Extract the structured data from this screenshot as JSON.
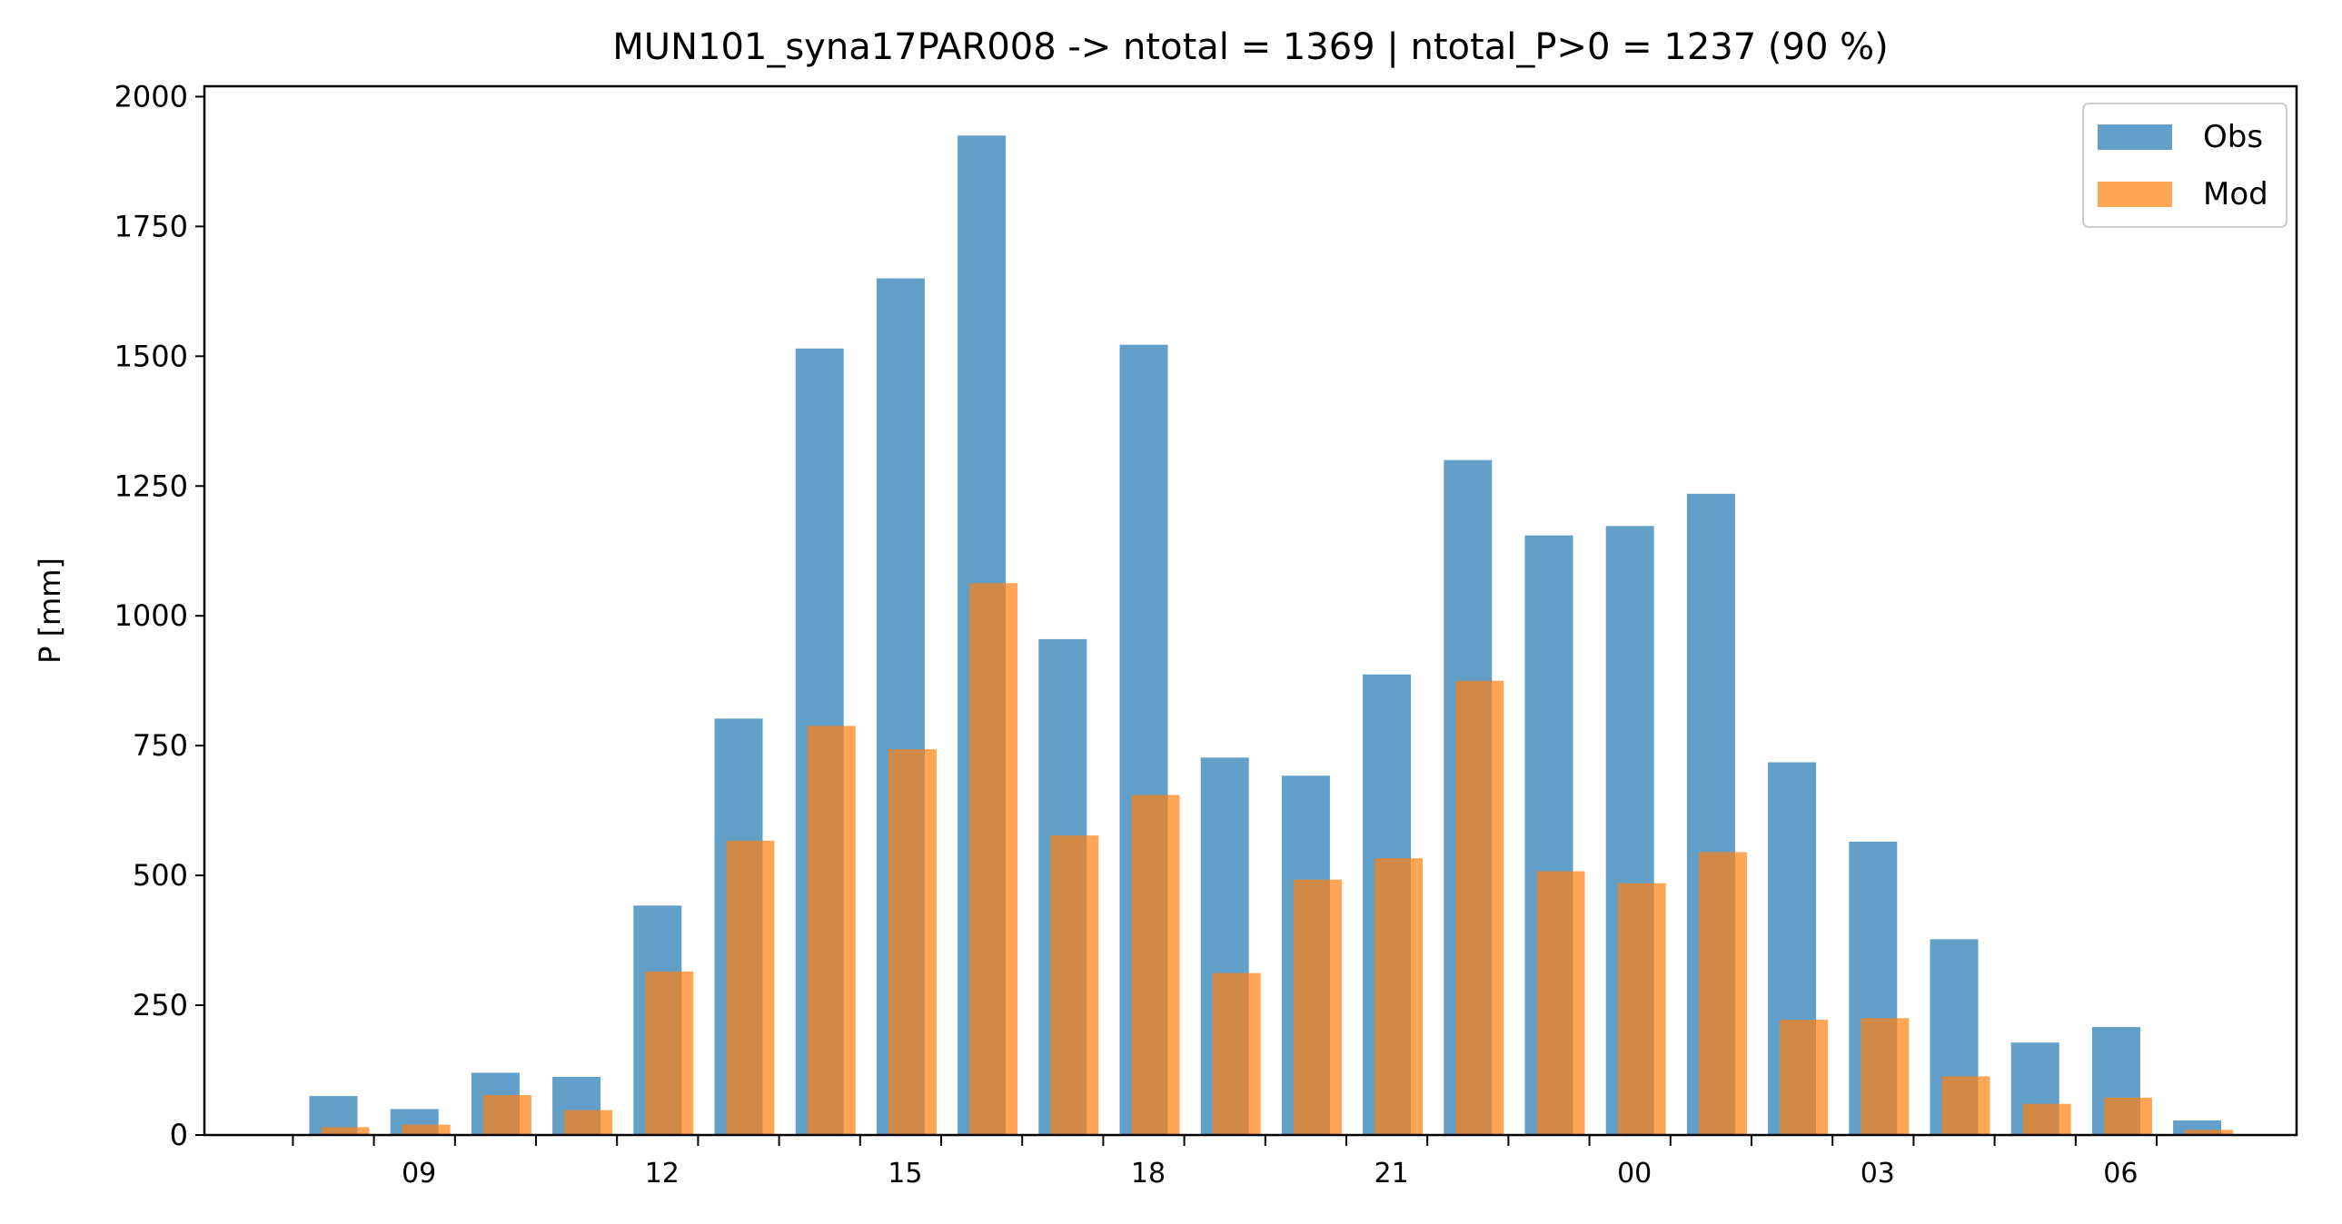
{
  "chart_data": {
    "type": "bar",
    "title": "MUN101_syna17PAR008 -> ntotal = 1369 | ntotal_P>0 = 1237 (90 %)",
    "xlabel": "",
    "ylabel": "P [mm]",
    "ylim": [
      0,
      2020
    ],
    "yticks": [
      0,
      250,
      500,
      750,
      1000,
      1250,
      1500,
      1750,
      2000
    ],
    "categories": [
      "08",
      "09",
      "10",
      "11",
      "12",
      "13",
      "14",
      "15",
      "16",
      "17",
      "18",
      "19",
      "20",
      "21",
      "22",
      "23",
      "00",
      "01",
      "02",
      "03",
      "04",
      "05",
      "06",
      "07"
    ],
    "xtick_labels": [
      "09",
      "12",
      "15",
      "18",
      "21",
      "00",
      "03",
      "06"
    ],
    "grid": false,
    "legend_position": "top-right",
    "series": [
      {
        "name": "Obs",
        "color": "#1f77b4",
        "alpha": 0.7,
        "values": [
          75,
          50,
          120,
          112,
          442,
          802,
          1515,
          1650,
          1925,
          955,
          1522,
          727,
          692,
          887,
          1300,
          1155,
          1173,
          1235,
          718,
          565,
          377,
          178,
          208,
          28
        ]
      },
      {
        "name": "Mod",
        "color": "#ff7f0e",
        "alpha": 0.7,
        "values": [
          15,
          20,
          77,
          48,
          315,
          567,
          788,
          743,
          1063,
          577,
          655,
          312,
          492,
          533,
          875,
          508,
          485,
          545,
          222,
          225,
          113,
          60,
          72,
          10
        ]
      }
    ]
  }
}
